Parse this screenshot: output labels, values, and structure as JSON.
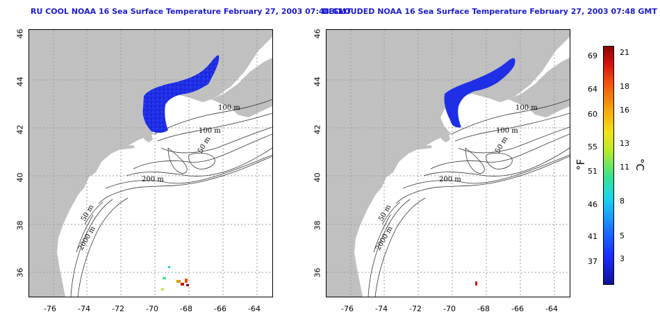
{
  "titles": {
    "left": "RU COOL NOAA 16 Sea Surface Temperature February 27, 2003 07:48 GMT",
    "right": "DECLOUDED NOAA 16 Sea Surface Temperature February 27, 2003 07:48 GMT"
  },
  "axes": {
    "x_ticks": [
      "-76",
      "-74",
      "-72",
      "-70",
      "-68",
      "-66",
      "-64"
    ],
    "y_ticks": [
      "46",
      "44",
      "42",
      "40",
      "38",
      "36"
    ]
  },
  "contours": {
    "left": [
      "100 m",
      "100 m",
      "50 m",
      "200 m",
      "50 m",
      "2000 m"
    ],
    "right": [
      "100 m",
      "100 m",
      "50 m",
      "200 m",
      "50 m",
      "2000 m"
    ]
  },
  "colorbar": {
    "fahrenheit_ticks": [
      "69",
      "64",
      "60",
      "55",
      "51",
      "46",
      "41",
      "37"
    ],
    "celsius_ticks": [
      "21",
      "18",
      "16",
      "13",
      "11",
      "8",
      "5",
      "3"
    ],
    "fahrenheit_unit": "°F",
    "celsius_unit": "°C",
    "colors": [
      "#10109a",
      "#1a2cff",
      "#1a7bff",
      "#19d4ee",
      "#3fe28a",
      "#b7ea2a",
      "#f3e21a",
      "#f5a10f",
      "#f04e10",
      "#d11010",
      "#8a0404"
    ]
  },
  "colors": {
    "title": "#1b1bd0",
    "land": "#c0c0c0",
    "sst_cold": "#1f2fe6",
    "grid": "#9a9a9a"
  }
}
